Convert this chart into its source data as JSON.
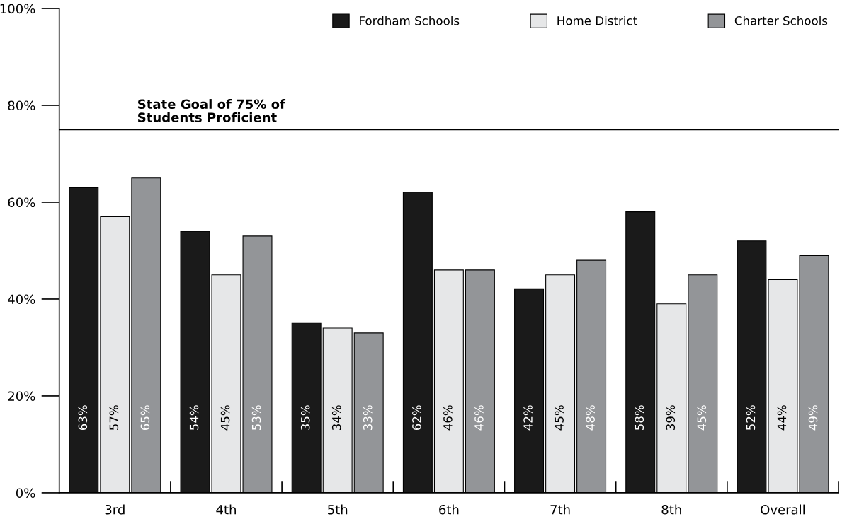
{
  "chart_data": {
    "type": "bar",
    "categories": [
      "3rd",
      "4th",
      "5th",
      "6th",
      "7th",
      "8th",
      "Overall"
    ],
    "series": [
      {
        "name": "Fordham Schools",
        "color": "#1a1a1a",
        "values": [
          63,
          54,
          35,
          62,
          42,
          58,
          52
        ],
        "value_labels": [
          "63%",
          "54%",
          "35%",
          "62%",
          "42%",
          "58%",
          "52%"
        ]
      },
      {
        "name": "Home District",
        "color": "#e6e7e8",
        "values": [
          57,
          45,
          34,
          46,
          45,
          39,
          44
        ],
        "value_labels": [
          "57%",
          "45%",
          "34%",
          "46%",
          "45%",
          "39%",
          "44%"
        ]
      },
      {
        "name": "Charter Schools",
        "color": "#939598",
        "values": [
          65,
          53,
          33,
          46,
          48,
          45,
          49
        ],
        "value_labels": [
          "65%",
          "53%",
          "33%",
          "46%",
          "48%",
          "45%",
          "49%"
        ]
      }
    ],
    "ylim": [
      0,
      100
    ],
    "yticks": [
      {
        "value": 0,
        "label": "0%"
      },
      {
        "value": 20,
        "label": "20%"
      },
      {
        "value": 40,
        "label": "40%"
      },
      {
        "value": 60,
        "label": "60%"
      },
      {
        "value": 80,
        "label": "80%"
      },
      {
        "value": 100,
        "label": "100%"
      }
    ],
    "ref_lines": [
      {
        "axis": "y",
        "value": 75,
        "label": "State Goal of 75% of\nStudents Proficient",
        "color": "#000000"
      }
    ],
    "legend": "top right",
    "grid": false
  }
}
